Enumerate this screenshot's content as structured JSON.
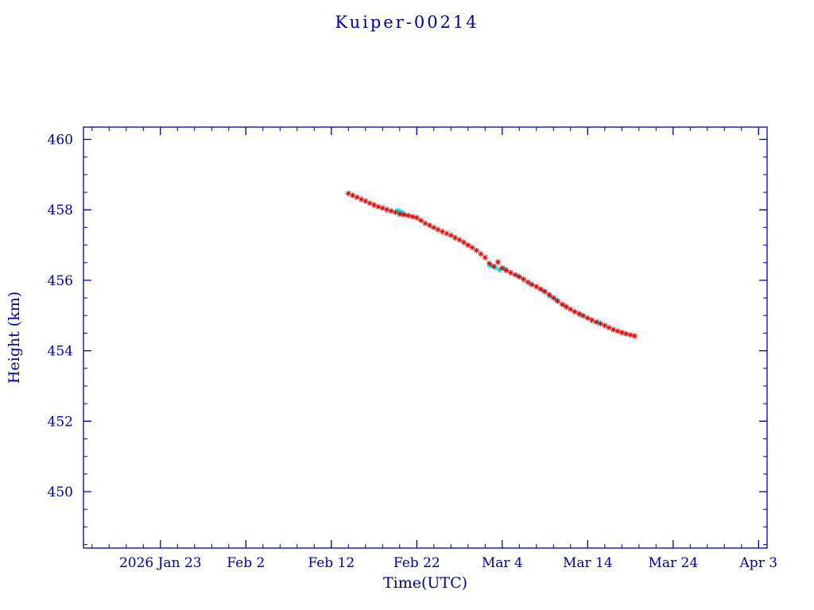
{
  "page": {
    "background": "#ffffff"
  },
  "chart_data": {
    "type": "scatter",
    "title": "Kuiper-00214",
    "xlabel": "Time(UTC)",
    "ylabel": "Height (km)",
    "axis_color": "#000099",
    "grid": false,
    "legend": "none",
    "x_axis": {
      "unit": "days",
      "range": [
        0,
        80
      ],
      "minor_step": 2,
      "major_ticks": [
        {
          "d": 9,
          "label": "2026 Jan 23"
        },
        {
          "d": 19,
          "label": "Feb 2"
        },
        {
          "d": 29,
          "label": "Feb 12"
        },
        {
          "d": 39,
          "label": "Feb 22"
        },
        {
          "d": 49,
          "label": "Mar 4"
        },
        {
          "d": 59,
          "label": "Mar 14"
        },
        {
          "d": 69,
          "label": "Mar 24"
        },
        {
          "d": 79,
          "label": "Apr 3"
        }
      ]
    },
    "y_axis": {
      "range": [
        448.4,
        460.35
      ],
      "minor_step": 0.5,
      "major_ticks": [
        450,
        452,
        454,
        456,
        458,
        460
      ]
    },
    "series": [
      {
        "name": "cyan-markers",
        "color": "#00cccc",
        "marker": "asterisk",
        "points": [
          [
            36.8,
            457.98
          ],
          [
            37.1,
            457.95
          ],
          [
            37.4,
            457.91
          ],
          [
            47.6,
            456.42
          ],
          [
            48.2,
            456.36
          ],
          [
            48.7,
            456.3
          ],
          [
            49.3,
            456.32
          ],
          [
            50.8,
            456.12
          ],
          [
            52.3,
            455.9
          ],
          [
            53.8,
            455.7
          ],
          [
            54.6,
            455.56
          ],
          [
            55.3,
            455.45
          ],
          [
            56.2,
            455.3
          ],
          [
            58.3,
            455.02
          ],
          [
            60.2,
            454.8
          ]
        ]
      },
      {
        "name": "red-markers",
        "color": "#dc0000",
        "marker": "asterisk",
        "points": [
          [
            31.0,
            458.47
          ],
          [
            31.5,
            458.41
          ],
          [
            32.0,
            458.36
          ],
          [
            32.5,
            458.3
          ],
          [
            33.0,
            458.25
          ],
          [
            33.5,
            458.19
          ],
          [
            34.0,
            458.14
          ],
          [
            34.5,
            458.09
          ],
          [
            35.0,
            458.05
          ],
          [
            35.5,
            458.01
          ],
          [
            36.0,
            457.97
          ],
          [
            36.5,
            457.93
          ],
          [
            37.0,
            457.88
          ],
          [
            37.5,
            457.86
          ],
          [
            38.0,
            457.84
          ],
          [
            38.5,
            457.81
          ],
          [
            39.0,
            457.78
          ],
          [
            39.5,
            457.7
          ],
          [
            40.0,
            457.62
          ],
          [
            40.5,
            457.56
          ],
          [
            41.0,
            457.5
          ],
          [
            41.5,
            457.44
          ],
          [
            42.0,
            457.38
          ],
          [
            42.5,
            457.33
          ],
          [
            43.0,
            457.28
          ],
          [
            43.5,
            457.21
          ],
          [
            44.0,
            457.15
          ],
          [
            44.5,
            457.08
          ],
          [
            45.0,
            457.0
          ],
          [
            45.5,
            456.93
          ],
          [
            46.0,
            456.85
          ],
          [
            46.5,
            456.75
          ],
          [
            47.0,
            456.65
          ],
          [
            47.5,
            456.48
          ],
          [
            48.0,
            456.4
          ],
          [
            48.5,
            456.52
          ],
          [
            49.0,
            456.35
          ],
          [
            49.5,
            456.28
          ],
          [
            50.0,
            456.22
          ],
          [
            50.5,
            456.16
          ],
          [
            51.0,
            456.1
          ],
          [
            51.5,
            456.03
          ],
          [
            52.0,
            455.95
          ],
          [
            52.5,
            455.88
          ],
          [
            53.0,
            455.82
          ],
          [
            53.5,
            455.75
          ],
          [
            54.0,
            455.68
          ],
          [
            54.5,
            455.59
          ],
          [
            55.0,
            455.5
          ],
          [
            55.5,
            455.41
          ],
          [
            56.0,
            455.32
          ],
          [
            56.5,
            455.25
          ],
          [
            57.0,
            455.18
          ],
          [
            57.5,
            455.11
          ],
          [
            58.0,
            455.05
          ],
          [
            58.5,
            454.99
          ],
          [
            59.0,
            454.93
          ],
          [
            59.5,
            454.87
          ],
          [
            60.0,
            454.82
          ],
          [
            60.5,
            454.77
          ],
          [
            61.0,
            454.72
          ],
          [
            61.5,
            454.66
          ],
          [
            62.0,
            454.6
          ],
          [
            62.5,
            454.56
          ],
          [
            63.0,
            454.52
          ],
          [
            63.5,
            454.48
          ],
          [
            64.0,
            454.45
          ],
          [
            64.5,
            454.42
          ]
        ]
      }
    ]
  }
}
